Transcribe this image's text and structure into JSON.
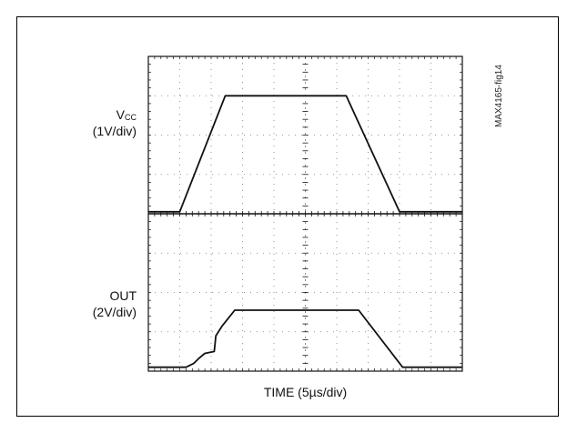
{
  "figure": {
    "id_label": "MAX4165-fig14"
  },
  "chart_data": {
    "type": "line",
    "description_grid": "8 horizontal x 10 vertical divisions",
    "x_divisions": 10,
    "y_divisions": 8,
    "grid": true,
    "xlabel": "TIME (5µs/div)",
    "x_unit_per_div": "5µs",
    "traces": [
      {
        "name": "VCC",
        "label_main": "V",
        "label_sub": "CC",
        "scale": "(1V/div)",
        "x_div": [
          0,
          1.0,
          2.45,
          6.3,
          8.0,
          10
        ],
        "y_div": [
          0.05,
          0.05,
          3.0,
          3.0,
          0.05,
          0.05
        ],
        "y_origin_div": 4
      },
      {
        "name": "OUT",
        "label_main": "OUT",
        "scale": "(2V/div)",
        "x_div": [
          0,
          1.2,
          1.45,
          1.6,
          1.8,
          2.1,
          2.15,
          2.35,
          2.75,
          6.7,
          8.1,
          10
        ],
        "y_div": [
          0.1,
          0.1,
          0.2,
          0.32,
          0.45,
          0.5,
          0.9,
          1.15,
          1.55,
          1.55,
          0.1,
          0.1
        ],
        "y_origin_div": 0
      }
    ]
  }
}
